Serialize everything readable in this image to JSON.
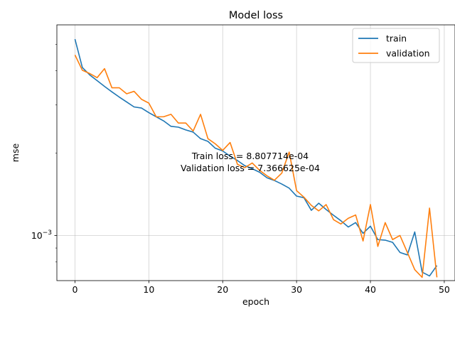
{
  "chart_data": {
    "type": "line",
    "title": "Model loss",
    "xlabel": "epoch",
    "ylabel": "mse",
    "xlim": [
      -2.45,
      51.45
    ],
    "ylim_log10": [
      -3.165,
      -2.23
    ],
    "yscale": "log",
    "grid": true,
    "legend_position": "top-right",
    "x_ticks": [
      0,
      10,
      20,
      30,
      40,
      50
    ],
    "y_ticks": [
      {
        "value": 0.001,
        "label_base": "10",
        "label_exp": "−3"
      }
    ],
    "annotation": {
      "lines": [
        "Train loss = 8.807714e-04",
        "Validation loss = 7.366625e-04"
      ]
    },
    "series": [
      {
        "name": "train",
        "color": "#1f77b4",
        "x": [
          0,
          1,
          2,
          3,
          4,
          5,
          6,
          7,
          8,
          9,
          10,
          11,
          12,
          13,
          14,
          15,
          16,
          17,
          18,
          19,
          20,
          21,
          22,
          23,
          24,
          25,
          26,
          27,
          28,
          29,
          30,
          31,
          32,
          33,
          34,
          35,
          36,
          37,
          38,
          39,
          40,
          41,
          42,
          43,
          44,
          45,
          46,
          47,
          48,
          49
        ],
        "y_log10": [
          -2.282,
          -2.386,
          -2.413,
          -2.434,
          -2.455,
          -2.475,
          -2.494,
          -2.512,
          -2.53,
          -2.534,
          -2.551,
          -2.566,
          -2.581,
          -2.601,
          -2.604,
          -2.614,
          -2.622,
          -2.646,
          -2.656,
          -2.681,
          -2.691,
          -2.71,
          -2.726,
          -2.745,
          -2.756,
          -2.769,
          -2.789,
          -2.799,
          -2.812,
          -2.827,
          -2.856,
          -2.862,
          -2.908,
          -2.882,
          -2.905,
          -2.926,
          -2.946,
          -2.969,
          -2.953,
          -2.992,
          -2.966,
          -3.015,
          -3.017,
          -3.025,
          -3.062,
          -3.071,
          -2.987,
          -3.134,
          -3.148,
          -3.11
        ]
      },
      {
        "name": "validation",
        "color": "#ff7f0e",
        "x": [
          0,
          1,
          2,
          3,
          4,
          5,
          6,
          7,
          8,
          9,
          10,
          11,
          12,
          13,
          14,
          15,
          16,
          17,
          18,
          19,
          20,
          21,
          22,
          23,
          24,
          25,
          26,
          27,
          28,
          29,
          30,
          31,
          32,
          33,
          34,
          35,
          36,
          37,
          38,
          39,
          40,
          41,
          42,
          43,
          44,
          45,
          46,
          47,
          48,
          49
        ],
        "y_log10": [
          -2.34,
          -2.396,
          -2.408,
          -2.423,
          -2.39,
          -2.46,
          -2.46,
          -2.482,
          -2.473,
          -2.502,
          -2.516,
          -2.566,
          -2.566,
          -2.557,
          -2.589,
          -2.589,
          -2.618,
          -2.557,
          -2.646,
          -2.665,
          -2.689,
          -2.66,
          -2.74,
          -2.752,
          -2.735,
          -2.762,
          -2.782,
          -2.798,
          -2.772,
          -2.695,
          -2.836,
          -2.86,
          -2.89,
          -2.91,
          -2.887,
          -2.942,
          -2.958,
          -2.937,
          -2.925,
          -3.02,
          -2.887,
          -3.04,
          -2.953,
          -3.015,
          -3.0,
          -3.062,
          -3.125,
          -3.153,
          -2.9,
          -3.153
        ]
      }
    ]
  }
}
